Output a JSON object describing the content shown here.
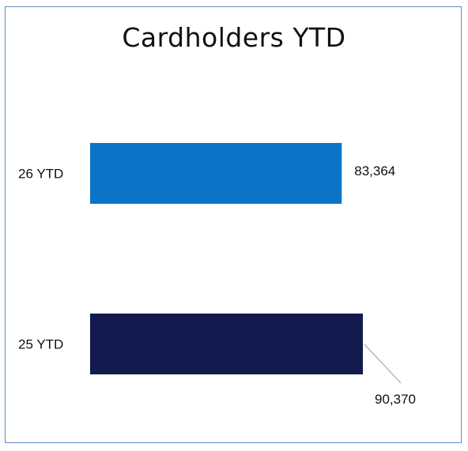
{
  "chart_data": {
    "type": "bar",
    "orientation": "horizontal",
    "title": "Cardholders YTD",
    "categories": [
      "26 YTD",
      "25 YTD"
    ],
    "values": [
      83364,
      90370
    ],
    "value_labels": [
      "83,364",
      "90,370"
    ],
    "colors": [
      "#0b74c7",
      "#131a4e"
    ],
    "xlim": [
      0,
      100000
    ],
    "grid": false,
    "legend": "none"
  }
}
